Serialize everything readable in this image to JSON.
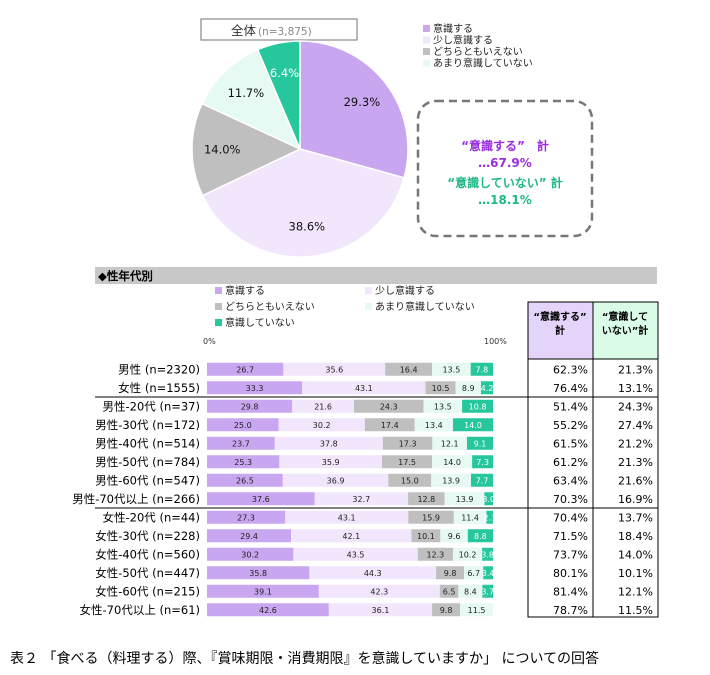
{
  "caption": "表２ 「食べる（料理する）際、『賞味期限・消費期限』を意識していますか」 についての回答",
  "colors": {
    "ishiki_suru": "#c9a6f0",
    "sukoshi": "#f1e6fb",
    "dochira": "#bfbfbf",
    "amari": "#e6f9f3",
    "shinai": "#27c79d",
    "sum_pos": "#e4d4fa",
    "sum_neg": "#dafbe6",
    "section_bar": "#c8c8c8",
    "pos_text": "#9b2de0",
    "neg_text": "#1db886",
    "dash": "#777777"
  },
  "chart_data": [
    {
      "type": "pie",
      "title": "全体",
      "subtitle": "(n=3,875)",
      "categories": [
        "意識する",
        "少し意識する",
        "どちらともいえない",
        "あまり意識していない",
        "意識していない"
      ],
      "values": [
        29.3,
        38.6,
        14.0,
        11.7,
        6.4
      ],
      "value_labels": [
        "29.3%",
        "38.6%",
        "14.0%",
        "11.7%",
        "6.4%"
      ],
      "legend": [
        "意識する",
        "少し意識する",
        "どちらともいえない",
        "あまり意識していない"
      ],
      "legend_position": "top-right",
      "annotation": {
        "line1": "“意識する”　計",
        "line2": "…67.9%",
        "line3": "“意識していない” 計",
        "line4": "…18.1%"
      }
    },
    {
      "type": "bar",
      "orientation": "horizontal",
      "stacked": true,
      "section_title": "◆性年代別",
      "axis_start_label": "0%",
      "axis_end_label": "100%",
      "xlim": [
        0,
        100
      ],
      "legend": [
        "意識する",
        "少し意識する",
        "どちらともいえない",
        "あまり意識していない",
        "意識していない"
      ],
      "legend_position": "top",
      "categories": [
        "男性 (n=2320)",
        "女性 (n=1555)",
        "男性-20代 (n=37)",
        "男性-30代 (n=172)",
        "男性-40代 (n=514)",
        "男性-50代 (n=784)",
        "男性-60代 (n=547)",
        "男性-70代以上 (n=266)",
        "女性-20代 (n=44)",
        "女性-30代 (n=228)",
        "女性-40代 (n=560)",
        "女性-50代 (n=447)",
        "女性-60代 (n=215)",
        "女性-70代以上 (n=61)"
      ],
      "series": [
        {
          "name": "意識する",
          "values": [
            26.7,
            33.3,
            29.8,
            25.0,
            23.7,
            25.3,
            26.5,
            37.6,
            27.3,
            29.4,
            30.2,
            35.8,
            39.1,
            42.6
          ]
        },
        {
          "name": "少し意識する",
          "values": [
            35.6,
            43.1,
            21.6,
            30.2,
            37.8,
            35.9,
            36.9,
            32.7,
            43.1,
            42.1,
            43.5,
            44.3,
            42.3,
            36.1
          ]
        },
        {
          "name": "どちらともいえない",
          "values": [
            16.4,
            10.5,
            24.3,
            17.4,
            17.3,
            17.5,
            15.0,
            12.8,
            15.9,
            10.1,
            12.3,
            9.8,
            6.5,
            9.8
          ]
        },
        {
          "name": "あまり意識していない",
          "values": [
            13.5,
            8.9,
            13.5,
            13.4,
            12.1,
            14.0,
            13.9,
            13.9,
            11.4,
            9.6,
            10.2,
            6.7,
            8.4,
            11.5
          ]
        },
        {
          "name": "意識していない",
          "values": [
            7.8,
            4.2,
            10.8,
            14.0,
            9.1,
            7.3,
            7.7,
            3.0,
            2.3,
            8.8,
            3.8,
            3.4,
            3.7,
            0.0
          ]
        }
      ],
      "value_labels": [
        [
          "26.7",
          "35.6",
          "16.4",
          "13.5",
          "7.8"
        ],
        [
          "33.3",
          "43.1",
          "10.5",
          "8.9",
          "4.2"
        ],
        [
          "29.8",
          "21.6",
          "24.3",
          "13.5",
          "10.8"
        ],
        [
          "25.0",
          "30.2",
          "17.4",
          "13.4",
          "14.0"
        ],
        [
          "23.7",
          "37.8",
          "17.3",
          "12.1",
          "9.1"
        ],
        [
          "25.3",
          "35.9",
          "17.5",
          "14.0",
          "7.3"
        ],
        [
          "26.5",
          "36.9",
          "15.0",
          "13.9",
          "7.7"
        ],
        [
          "37.6",
          "32.7",
          "12.8",
          "13.9",
          "3.0"
        ],
        [
          "27.3",
          "43.1",
          "15.9",
          "11.4",
          "2.3"
        ],
        [
          "29.4",
          "42.1",
          "10.1",
          "9.6",
          "8.8"
        ],
        [
          "30.2",
          "43.5",
          "12.3",
          "10.2",
          "3.8"
        ],
        [
          "35.8",
          "44.3",
          "9.8",
          "6.7",
          "3.4"
        ],
        [
          "39.1",
          "42.3",
          "6.5",
          "8.4",
          "3.7"
        ],
        [
          "42.6",
          "36.1",
          "9.8",
          "11.5",
          ""
        ]
      ],
      "summary_headers": [
        "“意識する”計",
        "“意識して いない”計"
      ],
      "summary": [
        [
          "62.3%",
          "21.3%"
        ],
        [
          "76.4%",
          "13.1%"
        ],
        [
          "51.4%",
          "24.3%"
        ],
        [
          "55.2%",
          "27.4%"
        ],
        [
          "61.5%",
          "21.2%"
        ],
        [
          "61.2%",
          "21.3%"
        ],
        [
          "63.4%",
          "21.6%"
        ],
        [
          "70.3%",
          "16.9%"
        ],
        [
          "70.4%",
          "13.7%"
        ],
        [
          "71.5%",
          "18.4%"
        ],
        [
          "73.7%",
          "14.0%"
        ],
        [
          "80.1%",
          "10.1%"
        ],
        [
          "81.4%",
          "12.1%"
        ],
        [
          "78.7%",
          "11.5%"
        ]
      ]
    }
  ]
}
